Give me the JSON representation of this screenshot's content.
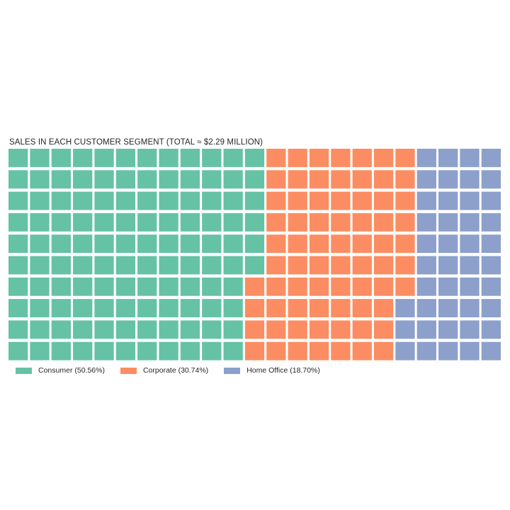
{
  "chart_data": {
    "type": "waffle",
    "title": "SALES IN EACH CUSTOMER SEGMENT (TOTAL ≈ $2.29 MILLION)",
    "rows": 10,
    "columns": 23,
    "fill_order": "column-major, starting top-left, top-to-bottom then left-to-right",
    "series": [
      {
        "name": "Consumer",
        "label": "Consumer (50.56%)",
        "percent": 50.56,
        "cells": 116,
        "color": "#66c2a5"
      },
      {
        "name": "Corporate",
        "label": "Corporate (30.74%)",
        "percent": 30.74,
        "cells": 71,
        "color": "#fc8d62"
      },
      {
        "name": "Home Office",
        "label": "Home Office (18.70%)",
        "percent": 18.7,
        "cells": 43,
        "color": "#8da0cb"
      }
    ],
    "legend_position": "bottom-left"
  }
}
